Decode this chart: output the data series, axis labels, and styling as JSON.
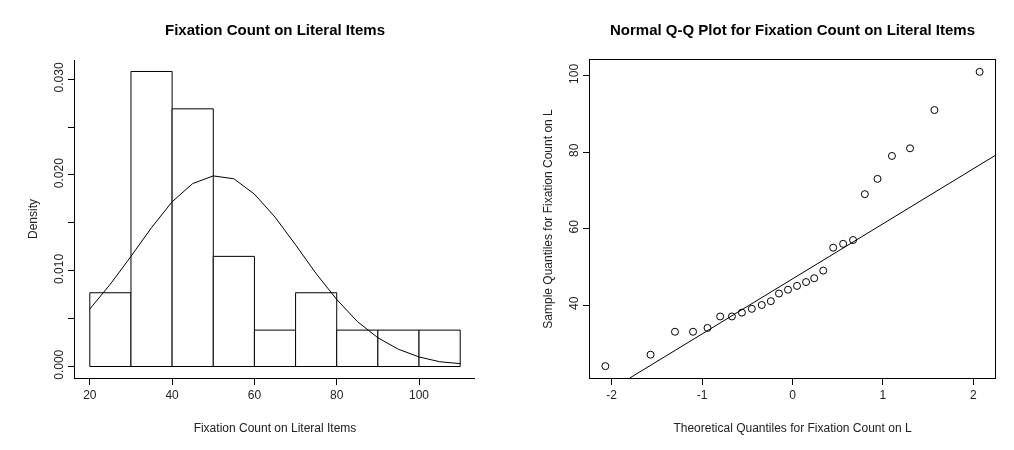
{
  "chart_data": [
    {
      "type": "histogram",
      "title": "Fixation Count on Literal Items",
      "xlabel": "Fixation Count on Literal Items",
      "ylabel": "Density",
      "color": "#ffffff",
      "bins": [
        20,
        30,
        40,
        50,
        60,
        70,
        80,
        90,
        100,
        110
      ],
      "values": [
        0.0077,
        0.0308,
        0.0269,
        0.0115,
        0.0038,
        0.0077,
        0.0038,
        0.0038,
        0.0038
      ],
      "series": [
        {
          "type": "line",
          "color": "#000000",
          "x": [
            20,
            25,
            30,
            35,
            40,
            45,
            50,
            55,
            60,
            65,
            70,
            75,
            80,
            85,
            90,
            95,
            100,
            105,
            110
          ],
          "values": [
            0.006,
            0.0086,
            0.0115,
            0.0145,
            0.0172,
            0.0191,
            0.0199,
            0.0196,
            0.018,
            0.0156,
            0.0127,
            0.0097,
            0.007,
            0.0047,
            0.003,
            0.0018,
            0.001,
            0.0005,
            0.0003
          ]
        }
      ],
      "xlim": [
        16.4,
        113.6
      ],
      "xticks": [
        20,
        40,
        60,
        80,
        100
      ],
      "ylim": [
        -0.0012,
        0.032
      ],
      "yticks": [
        {
          "value": 0,
          "label": "0.000"
        },
        {
          "value": 0.005,
          "label": null
        },
        {
          "value": 0.01,
          "label": "0.010"
        },
        {
          "value": 0.015,
          "label": null
        },
        {
          "value": 0.02,
          "label": "0.020"
        },
        {
          "value": 0.025,
          "label": null
        },
        {
          "value": 0.03,
          "label": "0.030"
        }
      ]
    },
    {
      "type": "scatter",
      "title": "Normal Q-Q Plot for Fixation Count on Literal Items",
      "xlabel": "Theoretical Quantiles for Fixation Count on L",
      "ylabel": "Sample Quantiles for Fixation Count on L",
      "series": [
        {
          "type": "scatter",
          "marker": "circle",
          "color": "#000000",
          "x": [
            -2.07,
            -1.57,
            -1.3,
            -1.1,
            -0.94,
            -0.8,
            -0.67,
            -0.56,
            -0.45,
            -0.34,
            -0.24,
            -0.15,
            -0.05,
            0.05,
            0.15,
            0.24,
            0.34,
            0.45,
            0.56,
            0.67,
            0.8,
            0.94,
            1.1,
            1.3,
            1.57,
            2.07
          ],
          "values": [
            24,
            27,
            33,
            33,
            34,
            37,
            37,
            38,
            39,
            40,
            41,
            43,
            44,
            45,
            46,
            47,
            49,
            55,
            56,
            57,
            69,
            73,
            79,
            81,
            91,
            101
          ]
        },
        {
          "type": "line",
          "color": "#000000",
          "x": [
            -1.8,
            2.24
          ],
          "values": [
            20.9,
            79.1
          ]
        }
      ],
      "xlim": [
        -2.24,
        2.24
      ],
      "xticks": [
        -2,
        -1,
        0,
        1,
        2
      ],
      "ylim": [
        20.9,
        104.1
      ],
      "yticks": [
        40,
        60,
        80,
        100
      ]
    }
  ]
}
